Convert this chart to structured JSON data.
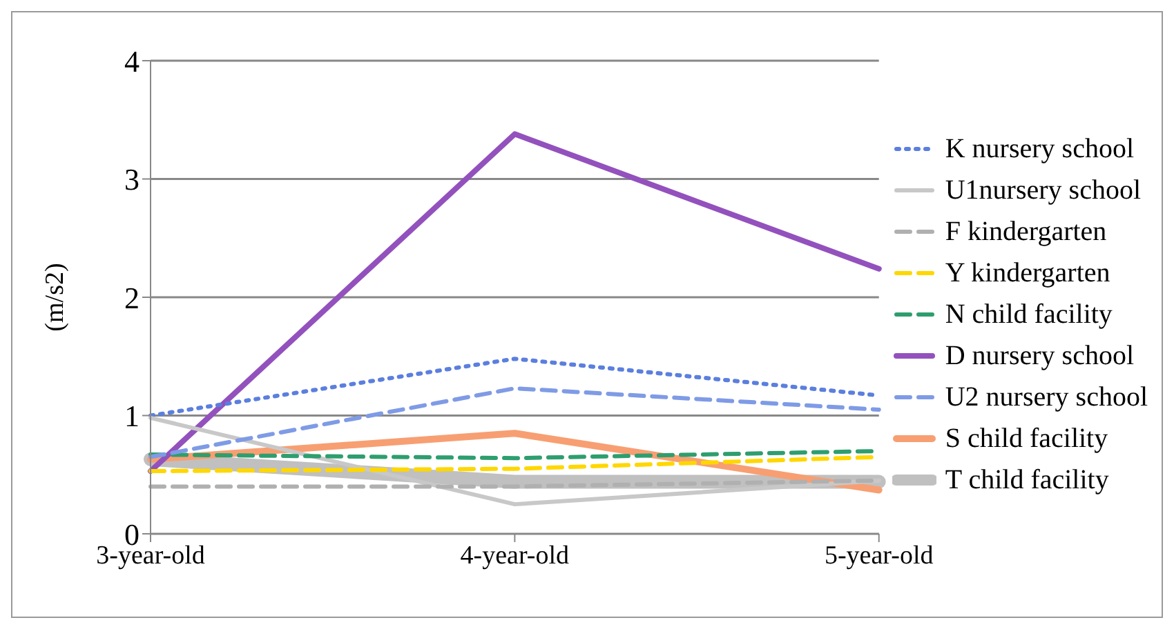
{
  "chart_data": {
    "type": "line",
    "ylabel": "(m/s2)",
    "categories": [
      "3-year-old",
      "4-year-old",
      "5-year-old"
    ],
    "ylim": [
      0,
      4
    ],
    "yticks": [
      0,
      1,
      2,
      3,
      4
    ],
    "grid": "y",
    "legend": "right",
    "marker": "none",
    "series": [
      {
        "name": "K nursery school",
        "color": "#5b7fde",
        "line_style": "dotted",
        "values": [
          1.0,
          1.48,
          1.17
        ]
      },
      {
        "name": "U1nursery school",
        "color": "#c8c8c8",
        "line_style": "solid",
        "values": [
          0.98,
          0.25,
          0.45
        ]
      },
      {
        "name": "F kindergarten",
        "color": "#b0b0b0",
        "line_style": "dashed",
        "values": [
          0.4,
          0.4,
          0.45
        ]
      },
      {
        "name": "Y kindergarten",
        "color": "#ffd700",
        "line_style": "dashed",
        "values": [
          0.53,
          0.55,
          0.65
        ]
      },
      {
        "name": "N child facility",
        "color": "#2e9e6e",
        "line_style": "dashed",
        "values": [
          0.67,
          0.64,
          0.7
        ]
      },
      {
        "name": "D nursery school",
        "color": "#9351bd",
        "line_style": "solid",
        "values": [
          0.53,
          3.38,
          2.24
        ]
      },
      {
        "name": "U2 nursery school",
        "color": "#7f9be6",
        "line_style": "dashed",
        "values": [
          0.65,
          1.23,
          1.05
        ]
      },
      {
        "name": "S child facility",
        "color": "#f79f72",
        "line_style": "solid",
        "values": [
          0.63,
          0.85,
          0.37
        ]
      },
      {
        "name": "T child facility",
        "color": "#c0c0c0",
        "line_style": "solid",
        "values": [
          0.63,
          0.44,
          0.44
        ]
      }
    ]
  }
}
